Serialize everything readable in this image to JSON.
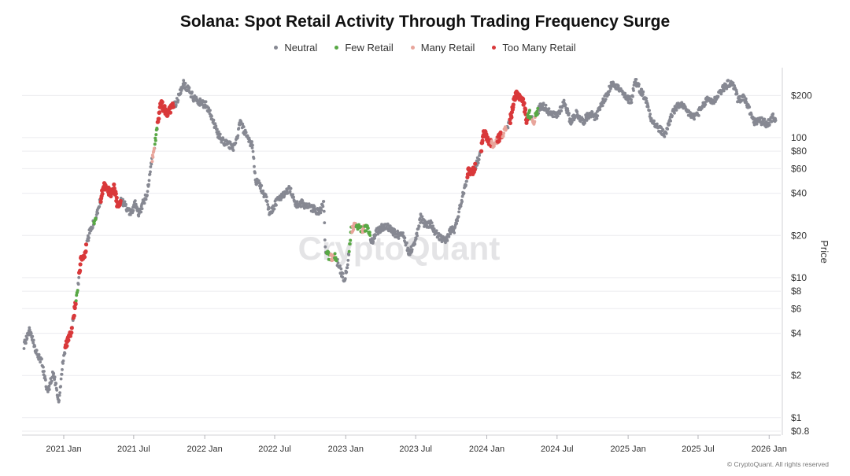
{
  "chart_data": {
    "type": "scatter",
    "title": "Solana: Spot Retail Activity Through Trading Frequency Surge",
    "ylabel": "Price",
    "y_scale": "log",
    "ylim": [
      0.75,
      300
    ],
    "xlim": [
      "2020-09-15",
      "2026-01-31"
    ],
    "grid": "horizontal",
    "legend_position": "top",
    "watermark": "CryptoQuant",
    "x_ticks": [
      {
        "date": "2021-01-01",
        "label": "2021 Jan"
      },
      {
        "date": "2021-07-01",
        "label": "2021 Jul"
      },
      {
        "date": "2022-01-01",
        "label": "2022 Jan"
      },
      {
        "date": "2022-07-01",
        "label": "2022 Jul"
      },
      {
        "date": "2023-01-01",
        "label": "2023 Jan"
      },
      {
        "date": "2023-07-01",
        "label": "2023 Jul"
      },
      {
        "date": "2024-01-01",
        "label": "2024 Jan"
      },
      {
        "date": "2024-07-01",
        "label": "2024 Jul"
      },
      {
        "date": "2025-01-01",
        "label": "2025 Jan"
      },
      {
        "date": "2025-07-01",
        "label": "2025 Jul"
      },
      {
        "date": "2026-01-01",
        "label": "2026 Jan"
      }
    ],
    "y_ticks": [
      {
        "value": 200,
        "label": "$200"
      },
      {
        "value": 100,
        "label": "100"
      },
      {
        "value": 80,
        "label": "$80"
      },
      {
        "value": 60,
        "label": "$60"
      },
      {
        "value": 40,
        "label": "$40"
      },
      {
        "value": 20,
        "label": "$20"
      },
      {
        "value": 10,
        "label": "$10"
      },
      {
        "value": 8,
        "label": "$8"
      },
      {
        "value": 6,
        "label": "$6"
      },
      {
        "value": 4,
        "label": "$4"
      },
      {
        "value": 2,
        "label": "$2"
      },
      {
        "value": 1,
        "label": "$1"
      },
      {
        "value": 0.8,
        "label": "$0.8"
      }
    ],
    "categories": [
      {
        "key": "neutral",
        "name": "Neutral",
        "color": "#868892"
      },
      {
        "key": "few",
        "name": "Few Retail",
        "color": "#58a845"
      },
      {
        "key": "many",
        "name": "Many Retail",
        "color": "#e8a59b"
      },
      {
        "key": "too_many",
        "name": "Too Many Retail",
        "color": "#d9383a"
      }
    ],
    "series_path": [
      [
        "2020-09-20",
        3.3
      ],
      [
        "2020-10-05",
        4.3
      ],
      [
        "2020-10-20",
        3.0
      ],
      [
        "2020-11-05",
        2.5
      ],
      [
        "2020-11-20",
        1.5
      ],
      [
        "2020-12-05",
        2.1
      ],
      [
        "2020-12-20",
        1.3
      ],
      [
        "2020-12-28",
        2.3
      ],
      [
        "2021-01-06",
        3.3
      ],
      [
        "2021-01-20",
        4.0
      ],
      [
        "2021-02-05",
        8.0
      ],
      [
        "2021-02-15",
        14.0
      ],
      [
        "2021-02-25",
        15.0
      ],
      [
        "2021-03-10",
        22.0
      ],
      [
        "2021-03-25",
        26.0
      ],
      [
        "2021-04-05",
        35.0
      ],
      [
        "2021-04-15",
        45.0
      ],
      [
        "2021-04-25",
        42.0
      ],
      [
        "2021-05-05",
        40.0
      ],
      [
        "2021-05-12",
        45.0
      ],
      [
        "2021-05-20",
        33.0
      ],
      [
        "2021-06-01",
        36.0
      ],
      [
        "2021-06-15",
        30.0
      ],
      [
        "2021-06-25",
        29.0
      ],
      [
        "2021-07-05",
        34.0
      ],
      [
        "2021-07-15",
        28.0
      ],
      [
        "2021-07-25",
        34.0
      ],
      [
        "2021-08-05",
        40.0
      ],
      [
        "2021-08-15",
        65.0
      ],
      [
        "2021-08-25",
        90.0
      ],
      [
        "2021-09-05",
        150.0
      ],
      [
        "2021-09-09",
        180.0
      ],
      [
        "2021-09-15",
        165.0
      ],
      [
        "2021-09-25",
        150.0
      ],
      [
        "2021-10-05",
        160.0
      ],
      [
        "2021-10-20",
        180.0
      ],
      [
        "2021-11-06",
        245.0
      ],
      [
        "2021-11-20",
        220.0
      ],
      [
        "2021-12-05",
        190.0
      ],
      [
        "2021-12-20",
        180.0
      ],
      [
        "2022-01-05",
        170.0
      ],
      [
        "2022-01-20",
        140.0
      ],
      [
        "2022-02-01",
        110.0
      ],
      [
        "2022-02-15",
        95.0
      ],
      [
        "2022-03-01",
        90.0
      ],
      [
        "2022-03-20",
        85.0
      ],
      [
        "2022-04-03",
        130.0
      ],
      [
        "2022-04-20",
        100.0
      ],
      [
        "2022-05-05",
        88.0
      ],
      [
        "2022-05-12",
        50.0
      ],
      [
        "2022-05-25",
        45.0
      ],
      [
        "2022-06-10",
        36.0
      ],
      [
        "2022-06-18",
        28.0
      ],
      [
        "2022-07-05",
        35.0
      ],
      [
        "2022-07-25",
        40.0
      ],
      [
        "2022-08-10",
        43.0
      ],
      [
        "2022-08-25",
        33.0
      ],
      [
        "2022-09-10",
        34.0
      ],
      [
        "2022-09-25",
        32.0
      ],
      [
        "2022-10-10",
        31.0
      ],
      [
        "2022-10-25",
        29.0
      ],
      [
        "2022-11-05",
        34.0
      ],
      [
        "2022-11-09",
        16.0
      ],
      [
        "2022-11-20",
        14.0
      ],
      [
        "2022-12-05",
        14.0
      ],
      [
        "2022-12-15",
        12.0
      ],
      [
        "2022-12-29",
        9.5
      ],
      [
        "2023-01-08",
        14.0
      ],
      [
        "2023-01-15",
        22.0
      ],
      [
        "2023-01-25",
        24.0
      ],
      [
        "2023-02-05",
        23.0
      ],
      [
        "2023-02-15",
        22.0
      ],
      [
        "2023-02-25",
        23.0
      ],
      [
        "2023-03-10",
        18.0
      ],
      [
        "2023-03-20",
        21.0
      ],
      [
        "2023-04-05",
        23.0
      ],
      [
        "2023-04-20",
        23.0
      ],
      [
        "2023-05-05",
        21.0
      ],
      [
        "2023-05-20",
        20.0
      ],
      [
        "2023-06-01",
        20.0
      ],
      [
        "2023-06-10",
        16.0
      ],
      [
        "2023-06-15",
        15.0
      ],
      [
        "2023-06-30",
        18.0
      ],
      [
        "2023-07-14",
        27.0
      ],
      [
        "2023-07-25",
        24.0
      ],
      [
        "2023-08-10",
        24.0
      ],
      [
        "2023-08-20",
        21.0
      ],
      [
        "2023-09-05",
        19.0
      ],
      [
        "2023-09-15",
        18.0
      ],
      [
        "2023-09-30",
        22.0
      ],
      [
        "2023-10-10",
        22.0
      ],
      [
        "2023-10-25",
        33.0
      ],
      [
        "2023-11-05",
        45.0
      ],
      [
        "2023-11-15",
        58.0
      ],
      [
        "2023-11-25",
        57.0
      ],
      [
        "2023-12-05",
        65.0
      ],
      [
        "2023-12-15",
        75.0
      ],
      [
        "2023-12-25",
        110.0
      ],
      [
        "2024-01-05",
        95.0
      ],
      [
        "2024-01-20",
        88.0
      ],
      [
        "2024-02-01",
        100.0
      ],
      [
        "2024-02-15",
        110.0
      ],
      [
        "2024-03-01",
        130.0
      ],
      [
        "2024-03-10",
        175.0
      ],
      [
        "2024-03-18",
        205.0
      ],
      [
        "2024-03-28",
        195.0
      ],
      [
        "2024-04-05",
        180.0
      ],
      [
        "2024-04-13",
        135.0
      ],
      [
        "2024-04-20",
        150.0
      ],
      [
        "2024-05-01",
        130.0
      ],
      [
        "2024-05-10",
        150.0
      ],
      [
        "2024-05-20",
        170.0
      ],
      [
        "2024-06-01",
        165.0
      ],
      [
        "2024-06-15",
        145.0
      ],
      [
        "2024-07-01",
        145.0
      ],
      [
        "2024-07-20",
        180.0
      ],
      [
        "2024-08-05",
        130.0
      ],
      [
        "2024-08-20",
        150.0
      ],
      [
        "2024-09-06",
        130.0
      ],
      [
        "2024-09-25",
        150.0
      ],
      [
        "2024-10-10",
        140.0
      ],
      [
        "2024-10-25",
        175.0
      ],
      [
        "2024-11-10",
        210.0
      ],
      [
        "2024-11-22",
        250.0
      ],
      [
        "2024-12-10",
        220.0
      ],
      [
        "2024-12-28",
        190.0
      ],
      [
        "2025-01-10",
        185.0
      ],
      [
        "2025-01-19",
        260.0
      ],
      [
        "2025-02-01",
        220.0
      ],
      [
        "2025-02-15",
        190.0
      ],
      [
        "2025-03-01",
        140.0
      ],
      [
        "2025-03-10",
        125.0
      ],
      [
        "2025-04-07",
        105.0
      ],
      [
        "2025-04-25",
        150.0
      ],
      [
        "2025-05-15",
        175.0
      ],
      [
        "2025-06-01",
        155.0
      ],
      [
        "2025-06-20",
        140.0
      ],
      [
        "2025-07-10",
        160.0
      ],
      [
        "2025-07-25",
        190.0
      ],
      [
        "2025-08-10",
        180.0
      ],
      [
        "2025-08-25",
        210.0
      ],
      [
        "2025-09-18",
        245.0
      ],
      [
        "2025-10-05",
        230.0
      ],
      [
        "2025-10-12",
        185.0
      ],
      [
        "2025-10-28",
        195.0
      ],
      [
        "2025-11-10",
        160.0
      ],
      [
        "2025-11-22",
        130.0
      ],
      [
        "2025-12-10",
        132.0
      ],
      [
        "2025-12-28",
        125.0
      ],
      [
        "2026-01-10",
        140.0
      ],
      [
        "2026-01-18",
        135.0
      ]
    ],
    "retail_segments": [
      {
        "from": "2021-01-05",
        "to": "2021-01-22",
        "category": "too_many"
      },
      {
        "from": "2021-01-26",
        "to": "2021-02-01",
        "category": "too_many"
      },
      {
        "from": "2021-02-02",
        "to": "2021-02-06",
        "category": "few"
      },
      {
        "from": "2021-02-10",
        "to": "2021-02-28",
        "category": "too_many"
      },
      {
        "from": "2021-03-20",
        "to": "2021-03-25",
        "category": "few"
      },
      {
        "from": "2021-04-07",
        "to": "2021-05-28",
        "category": "too_many"
      },
      {
        "from": "2021-08-18",
        "to": "2021-08-23",
        "category": "many"
      },
      {
        "from": "2021-08-25",
        "to": "2021-08-30",
        "category": "few"
      },
      {
        "from": "2021-09-01",
        "to": "2021-10-12",
        "category": "too_many"
      },
      {
        "from": "2022-11-12",
        "to": "2022-11-22",
        "category": "few"
      },
      {
        "from": "2022-11-23",
        "to": "2022-12-02",
        "category": "many"
      },
      {
        "from": "2022-12-03",
        "to": "2022-12-08",
        "category": "few"
      },
      {
        "from": "2023-01-10",
        "to": "2023-01-16",
        "category": "few"
      },
      {
        "from": "2023-01-17",
        "to": "2023-01-27",
        "category": "many"
      },
      {
        "from": "2023-01-28",
        "to": "2023-02-12",
        "category": "few"
      },
      {
        "from": "2023-02-13",
        "to": "2023-02-18",
        "category": "many"
      },
      {
        "from": "2023-02-19",
        "to": "2023-03-05",
        "category": "few"
      },
      {
        "from": "2023-11-12",
        "to": "2023-12-02",
        "category": "too_many"
      },
      {
        "from": "2023-12-18",
        "to": "2024-01-12",
        "category": "too_many"
      },
      {
        "from": "2024-01-13",
        "to": "2024-01-28",
        "category": "many"
      },
      {
        "from": "2024-01-29",
        "to": "2024-02-10",
        "category": "too_many"
      },
      {
        "from": "2024-02-11",
        "to": "2024-02-20",
        "category": "many"
      },
      {
        "from": "2024-03-01",
        "to": "2024-04-15",
        "category": "too_many"
      },
      {
        "from": "2024-04-16",
        "to": "2024-04-24",
        "category": "few"
      },
      {
        "from": "2024-04-28",
        "to": "2024-05-05",
        "category": "many"
      },
      {
        "from": "2024-05-06",
        "to": "2024-05-12",
        "category": "few"
      }
    ]
  },
  "credit": "© CryptoQuant. All rights reserved"
}
